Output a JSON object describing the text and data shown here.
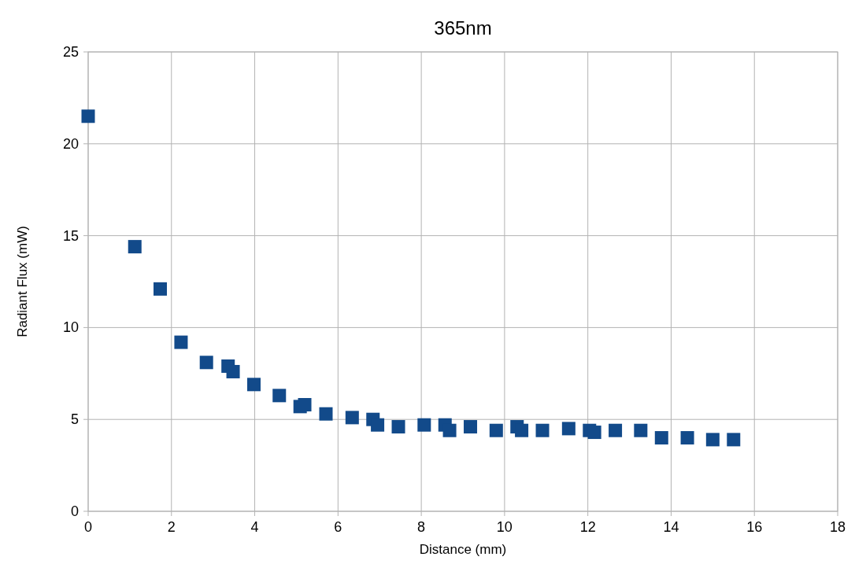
{
  "chart_data": {
    "type": "scatter",
    "title": "365nm",
    "xlabel": "Distance (mm)",
    "ylabel": "Radiant Flux (mW)",
    "x": [
      0,
      1.12,
      1.73,
      2.23,
      2.84,
      3.36,
      3.48,
      3.98,
      4.59,
      5.09,
      5.2,
      5.71,
      6.34,
      6.84,
      6.95,
      7.45,
      8.07,
      8.57,
      8.68,
      9.18,
      9.8,
      10.3,
      10.41,
      10.91,
      11.54,
      12.04,
      12.16,
      12.66,
      13.27,
      13.77,
      14.39,
      15.0,
      15.5
    ],
    "series": [
      {
        "color": "#124a8a",
        "values": [
          21.5,
          14.4,
          12.1,
          9.2,
          8.1,
          7.9,
          7.6,
          6.9,
          6.3,
          5.7,
          5.8,
          5.3,
          5.1,
          5.0,
          4.7,
          4.6,
          4.7,
          4.7,
          4.4,
          4.6,
          4.4,
          4.6,
          4.4,
          4.4,
          4.5,
          4.4,
          4.3,
          4.4,
          4.4,
          4.0,
          4.0,
          3.9,
          3.9
        ]
      }
    ],
    "xlim": [
      0,
      18
    ],
    "xticks": [
      0,
      2,
      4,
      6,
      8,
      10,
      12,
      14,
      16,
      18
    ],
    "ylim": [
      0,
      25
    ],
    "yticks": [
      0,
      5,
      10,
      15,
      20,
      25
    ],
    "grid": true,
    "marker": "square"
  }
}
